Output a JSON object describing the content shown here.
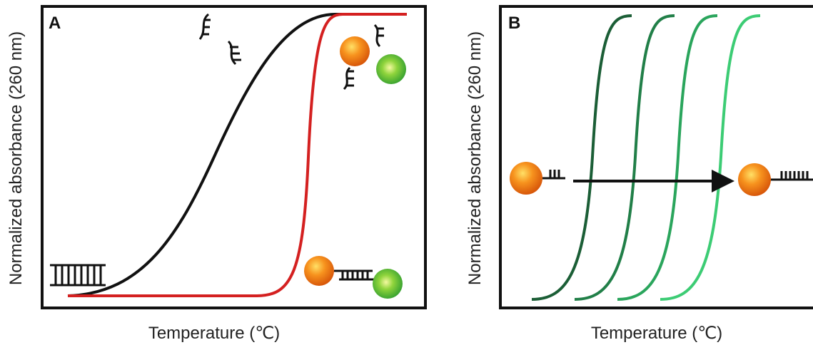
{
  "panels": [
    {
      "label": "A",
      "y_label": "Normalized absorbance (260 nm)",
      "x_label": "Temperature (℃)"
    },
    {
      "label": "B",
      "y_label": "Normalized absorbance (260 nm)",
      "x_label": "Temperature (℃)"
    }
  ]
}
